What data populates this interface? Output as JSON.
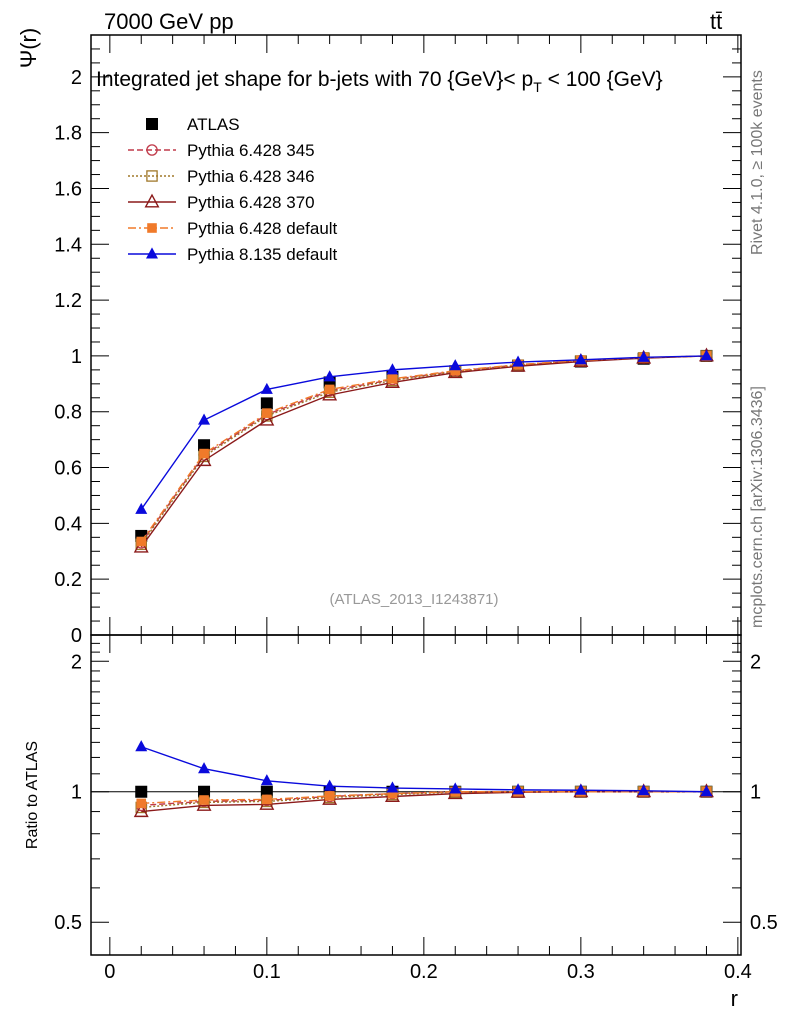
{
  "header": {
    "energy_label": "7000 GeV pp",
    "process_label": "tt̄",
    "side_label_top": "Rivet 4.1.0, ≥ 100k events",
    "side_label_bottom": "mcplots.cern.ch [arXiv:1306.3436]"
  },
  "chart_data": {
    "type": "line",
    "title": "Integrated jet shape for b-jets with 70 {GeV}< p_T < 100 {GeV}",
    "title_parts": {
      "pre": "Integrated jet shape for b-jets with 70 {GeV}< p",
      "sub": "T",
      "post": " < 100 {GeV}"
    },
    "analysis_label": "(ATLAS_2013_I1243871)",
    "xlabel": "r",
    "ylabel": "Ψ(r)",
    "ratio_ylabel": "Ratio to ATLAS",
    "xlim": [
      -0.012,
      0.402
    ],
    "ylim": [
      0,
      2.15
    ],
    "ratio_ylim": [
      0.42,
      2.3
    ],
    "x_ticks": [
      0,
      0.1,
      0.2,
      0.3,
      0.4
    ],
    "x_tick_labels": [
      "0",
      "0.1",
      "0.2",
      "0.3",
      "0.4"
    ],
    "y_ticks": [
      0,
      0.2,
      0.4,
      0.6,
      0.8,
      1,
      1.2,
      1.4,
      1.6,
      1.8,
      2
    ],
    "y_tick_labels": [
      "0",
      "0.2",
      "0.4",
      "0.6",
      "0.8",
      "1",
      "1.2",
      "1.4",
      "1.6",
      "1.8",
      "2"
    ],
    "ratio_ticks": [
      0.5,
      1,
      2
    ],
    "ratio_tick_labels": [
      "0.5",
      "1",
      "2"
    ],
    "x": [
      0.02,
      0.06,
      0.1,
      0.14,
      0.18,
      0.22,
      0.26,
      0.3,
      0.34,
      0.38
    ],
    "legend_position": "top-left",
    "series": [
      {
        "name": "ATLAS",
        "color": "#000000",
        "marker": "square",
        "dash": "none",
        "line": false,
        "values": [
          0.355,
          0.68,
          0.83,
          0.905,
          0.925,
          0.945,
          0.965,
          0.98,
          0.99,
          1.0
        ],
        "ratio": [
          1,
          1,
          1,
          1,
          1,
          1,
          1,
          1,
          1,
          1
        ]
      },
      {
        "name": "Pythia 6.428 345",
        "color": "#c03a4a",
        "marker": "circle-open",
        "dash": "6,3",
        "values": [
          0.33,
          0.645,
          0.79,
          0.875,
          0.915,
          0.945,
          0.968,
          0.983,
          0.993,
          1.0
        ],
        "ratio": [
          0.93,
          0.95,
          0.955,
          0.975,
          0.99,
          1.0,
          1.0,
          1.0,
          1.0,
          1.0
        ]
      },
      {
        "name": "Pythia 6.428 346",
        "color": "#a0782a",
        "marker": "square-open",
        "dash": "2,2",
        "values": [
          0.325,
          0.64,
          0.785,
          0.87,
          0.912,
          0.943,
          0.967,
          0.982,
          0.993,
          1.0
        ],
        "ratio": [
          0.92,
          0.945,
          0.95,
          0.97,
          0.985,
          0.998,
          1.0,
          1.0,
          1.0,
          1.0
        ]
      },
      {
        "name": "Pythia 6.428 370",
        "color": "#8b1a1a",
        "marker": "triangle-open",
        "dash": "none",
        "values": [
          0.315,
          0.625,
          0.77,
          0.86,
          0.905,
          0.94,
          0.963,
          0.98,
          0.992,
          1.0
        ],
        "ratio": [
          0.9,
          0.93,
          0.935,
          0.96,
          0.975,
          0.99,
          0.997,
          1.0,
          1.0,
          1.0
        ]
      },
      {
        "name": "Pythia 6.428 default",
        "color": "#f07a2a",
        "marker": "square-small",
        "dash": "8,3,2,3",
        "values": [
          0.335,
          0.65,
          0.795,
          0.88,
          0.918,
          0.947,
          0.969,
          0.984,
          0.994,
          1.0
        ],
        "ratio": [
          0.94,
          0.957,
          0.96,
          0.978,
          0.99,
          1.0,
          1.0,
          1.0,
          1.0,
          1.0
        ]
      },
      {
        "name": "Pythia 8.135 default",
        "color": "#0a0adc",
        "marker": "triangle",
        "dash": "none",
        "values": [
          0.45,
          0.77,
          0.88,
          0.925,
          0.95,
          0.965,
          0.978,
          0.986,
          0.995,
          1.0
        ],
        "ratio": [
          1.27,
          1.13,
          1.06,
          1.03,
          1.02,
          1.015,
          1.01,
          1.008,
          1.005,
          1.0
        ]
      }
    ]
  }
}
